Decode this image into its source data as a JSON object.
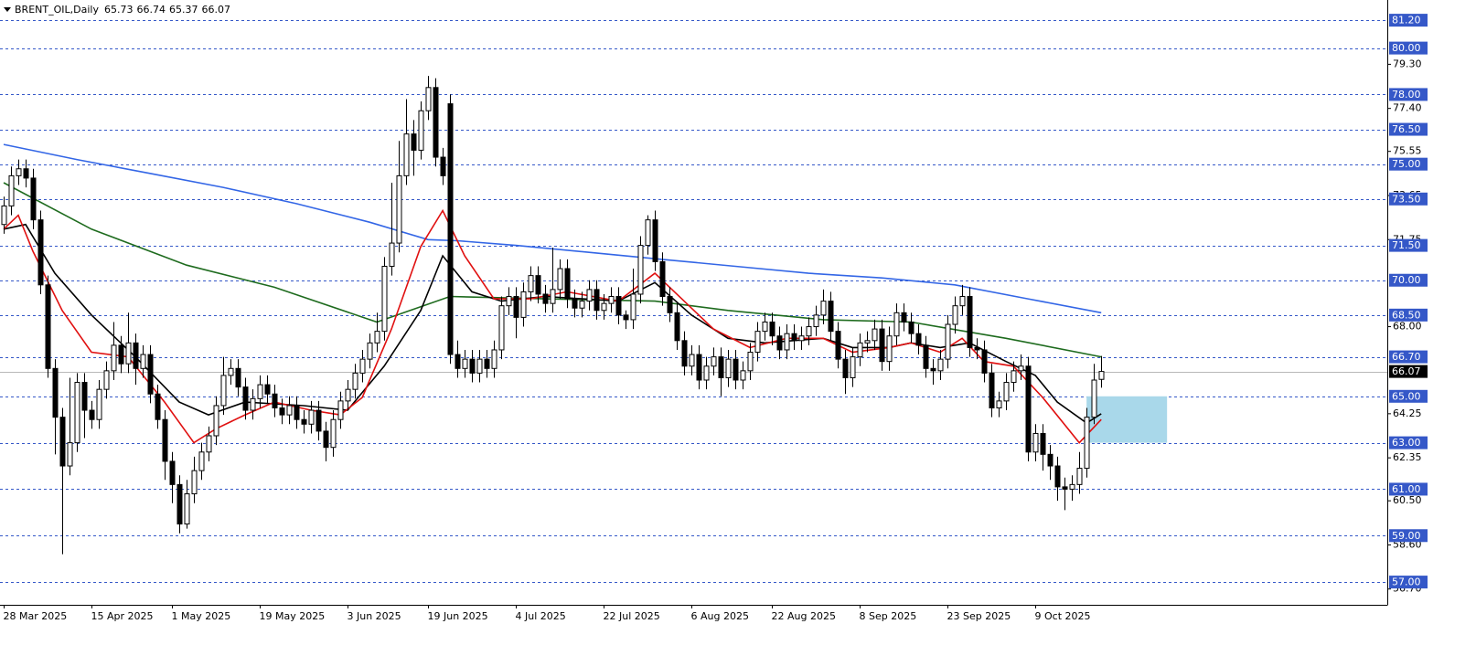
{
  "chart_data": {
    "type": "candlestick",
    "title": "BRENT_OIL,Daily",
    "xlim": [
      -0.5,
      189.1
    ],
    "ylim": [
      56.02,
      82.07
    ],
    "xticks": [
      {
        "value": 0,
        "label": "28 Mar 2025"
      },
      {
        "value": 12,
        "label": "15 Apr 2025"
      },
      {
        "value": 23,
        "label": "1 May 2025"
      },
      {
        "value": 35,
        "label": "19 May 2025"
      },
      {
        "value": 47,
        "label": "3 Jun 2025"
      },
      {
        "value": 58,
        "label": "19 Jun 2025"
      },
      {
        "value": 70,
        "label": "4 Jul 2025"
      },
      {
        "value": 82,
        "label": "22 Jul 2025"
      },
      {
        "value": 94,
        "label": "6 Aug 2025"
      },
      {
        "value": 105,
        "label": "22 Aug 2025"
      },
      {
        "value": 117,
        "label": "8 Sep 2025"
      },
      {
        "value": 129,
        "label": "23 Sep 2025"
      },
      {
        "value": 141,
        "label": "9 Oct 2025"
      }
    ],
    "yticks": [
      {
        "value": 79.3,
        "label": "79.30"
      },
      {
        "value": 77.4,
        "label": "77.40"
      },
      75.55,
      73.65,
      71.75,
      {
        "value": 68,
        "label": "68.00"
      },
      64.25,
      62.35,
      {
        "value": 60.5,
        "label": "60.50"
      },
      {
        "value": 58.6,
        "label": "58.60"
      },
      {
        "value": 56.7,
        "label": "56.70"
      }
    ],
    "levels": [
      {
        "value": 81.2,
        "label": "81.20"
      },
      {
        "value": 80,
        "label": "80.00"
      },
      {
        "value": 78,
        "label": "78.00"
      },
      {
        "value": 76.5,
        "label": "76.50"
      },
      {
        "value": 75,
        "label": "75.00"
      },
      {
        "value": 73.5,
        "label": "73.50"
      },
      {
        "value": 71.5,
        "label": "71.50"
      },
      {
        "value": 70,
        "label": "70.00"
      },
      {
        "value": 68.5,
        "label": "68.50"
      },
      {
        "value": 66.7,
        "label": "66.70"
      },
      {
        "value": 65,
        "label": "65.00"
      },
      {
        "value": 63,
        "label": "63.00"
      },
      {
        "value": 61,
        "label": "61.00"
      },
      {
        "value": 59,
        "label": "59.00"
      },
      {
        "value": 57,
        "label": "57.00"
      }
    ],
    "level_color": "#3558c8",
    "zone": {
      "x": [
        148,
        159
      ],
      "y": [
        63,
        65
      ],
      "color": "#a9d8ea"
    },
    "bull_color": "#ffffff",
    "bear_color": "#000000",
    "open": [
      72.4,
      73.2,
      74.5,
      74.8,
      74.4,
      72.6,
      69.8,
      66.2,
      64.1,
      62.0,
      63.0,
      65.6,
      64.4,
      64.0,
      65.3,
      66.1,
      67.2,
      66.4,
      67.3,
      66.2,
      66.8,
      65.1,
      64.0,
      62.2,
      61.2,
      59.5,
      60.8,
      61.8,
      62.6,
      63.3,
      64.6,
      65.9,
      66.2,
      65.4,
      64.4,
      64.9,
      65.5,
      65.1,
      64.5,
      64.2,
      64.6,
      64.0,
      63.8,
      64.4,
      63.5,
      62.8,
      64.0,
      64.8,
      65.3,
      66.0,
      66.6,
      67.3,
      67.8,
      70.6,
      71.6,
      74.5,
      76.3,
      75.6,
      77.3,
      78.3,
      75.3,
      77.6,
      66.8,
      66.2,
      66.6,
      66.0,
      66.6,
      66.2,
      67.0,
      68.9,
      69.3,
      68.4,
      69.5,
      70.2,
      69.4,
      69.0,
      69.6,
      70.5,
      69.2,
      68.8,
      69.1,
      69.6,
      68.7,
      69.0,
      69.3,
      68.5,
      68.3,
      69.4,
      71.5,
      72.6,
      70.8,
      69.3,
      68.6,
      67.4,
      66.3,
      66.8,
      65.7,
      66.3,
      66.7,
      65.8,
      66.6,
      65.7,
      66.1,
      66.9,
      67.8,
      68.2,
      67.6,
      67.0,
      67.7,
      67.4,
      67.6,
      68.0,
      68.5,
      69.1,
      67.8,
      66.6,
      65.8,
      66.7,
      67.3,
      67.4,
      67.9,
      66.5,
      67.6,
      68.6,
      68.2,
      67.7,
      67.2,
      66.2,
      66.1,
      66.6,
      68.1,
      68.9,
      69.3,
      67.1,
      67.0,
      66.0,
      64.5,
      64.8,
      65.6,
      66.1,
      66.3,
      62.6,
      63.4,
      62.5,
      62.0,
      61.1,
      61.0,
      61.2,
      61.9,
      64.1,
      65.73
    ],
    "high": [
      73.6,
      74.9,
      75.2,
      75.2,
      74.8,
      73.0,
      70.2,
      66.6,
      64.5,
      65.8,
      66.0,
      66.0,
      64.8,
      65.7,
      66.5,
      68.2,
      67.6,
      68.6,
      67.7,
      67.2,
      67.2,
      65.5,
      64.4,
      62.6,
      61.6,
      61.4,
      62.4,
      63.0,
      63.7,
      65.0,
      66.7,
      66.6,
      66.6,
      65.8,
      65.3,
      65.9,
      65.9,
      65.5,
      64.9,
      65.0,
      65.0,
      64.4,
      64.8,
      64.8,
      63.9,
      64.4,
      65.2,
      65.7,
      66.4,
      67.0,
      67.7,
      68.6,
      71.0,
      74.2,
      76.0,
      77.8,
      76.9,
      77.7,
      78.8,
      78.7,
      75.7,
      78.0,
      67.4,
      67.0,
      67.0,
      67.0,
      67.0,
      67.4,
      69.3,
      69.7,
      69.7,
      69.9,
      70.6,
      70.6,
      69.8,
      71.4,
      70.9,
      70.9,
      69.6,
      69.5,
      70.0,
      70.0,
      69.4,
      69.7,
      69.7,
      68.7,
      70.5,
      71.9,
      72.8,
      73.0,
      71.2,
      69.7,
      69.0,
      67.8,
      67.2,
      67.2,
      66.7,
      67.1,
      67.1,
      67.0,
      67.0,
      66.5,
      67.3,
      68.2,
      68.6,
      68.6,
      68.0,
      68.1,
      68.1,
      68.0,
      68.4,
      68.9,
      69.6,
      69.5,
      68.2,
      67.0,
      67.1,
      67.7,
      67.8,
      68.3,
      68.3,
      68.0,
      69.0,
      69.0,
      68.6,
      68.1,
      67.6,
      66.6,
      67.0,
      68.5,
      69.3,
      69.8,
      69.7,
      67.5,
      67.4,
      66.4,
      65.2,
      66.0,
      66.5,
      66.8,
      66.7,
      63.8,
      63.8,
      62.9,
      62.4,
      61.5,
      61.6,
      62.6,
      64.5,
      66.4,
      66.74
    ],
    "low": [
      72.0,
      72.8,
      74.1,
      74.0,
      72.2,
      69.4,
      65.8,
      62.5,
      58.2,
      61.6,
      62.6,
      63.2,
      63.6,
      63.6,
      64.9,
      65.7,
      66.0,
      66.0,
      65.5,
      65.8,
      64.7,
      63.6,
      61.4,
      60.4,
      59.1,
      59.3,
      60.4,
      61.4,
      62.2,
      62.9,
      64.2,
      65.5,
      65.0,
      64.0,
      64.0,
      64.5,
      64.7,
      64.1,
      63.8,
      63.8,
      63.6,
      63.4,
      63.4,
      63.1,
      62.2,
      62.4,
      63.6,
      64.4,
      64.9,
      65.6,
      66.2,
      66.9,
      67.4,
      70.2,
      71.2,
      74.1,
      74.5,
      75.2,
      76.9,
      74.9,
      74.1,
      66.4,
      65.8,
      65.8,
      65.6,
      65.6,
      65.8,
      65.8,
      66.6,
      68.5,
      67.5,
      68.0,
      69.1,
      69.0,
      68.6,
      68.6,
      69.2,
      68.8,
      68.4,
      68.4,
      68.7,
      68.3,
      68.3,
      68.6,
      68.1,
      67.9,
      67.9,
      69.0,
      71.1,
      70.4,
      68.9,
      68.2,
      67.0,
      65.9,
      65.9,
      65.3,
      65.3,
      65.9,
      65.0,
      65.4,
      65.3,
      65.3,
      65.7,
      66.5,
      67.4,
      67.2,
      66.6,
      66.6,
      67.0,
      67.0,
      67.2,
      67.6,
      68.1,
      67.4,
      66.2,
      65.1,
      65.4,
      66.3,
      66.9,
      67.0,
      66.1,
      66.1,
      67.2,
      67.8,
      67.3,
      66.8,
      65.8,
      65.5,
      65.7,
      66.2,
      67.7,
      68.5,
      66.7,
      66.6,
      65.6,
      64.1,
      64.1,
      64.4,
      65.2,
      65.7,
      62.2,
      62.2,
      61.8,
      61.4,
      60.5,
      60.1,
      60.5,
      60.8,
      61.5,
      63.8,
      65.37
    ],
    "close": [
      73.2,
      74.5,
      74.8,
      74.4,
      72.6,
      69.8,
      66.2,
      64.1,
      62.0,
      63.0,
      65.6,
      64.4,
      64.0,
      65.3,
      66.1,
      67.2,
      66.4,
      67.3,
      66.2,
      66.8,
      65.1,
      64.0,
      62.2,
      61.2,
      59.5,
      60.8,
      61.8,
      62.6,
      63.3,
      64.6,
      65.9,
      66.2,
      65.4,
      64.4,
      64.9,
      65.5,
      65.1,
      64.5,
      64.2,
      64.6,
      64.0,
      63.8,
      64.4,
      63.5,
      62.8,
      64.0,
      64.8,
      65.3,
      66.0,
      66.6,
      67.3,
      67.8,
      70.6,
      71.6,
      74.5,
      76.3,
      75.6,
      77.3,
      78.3,
      75.3,
      74.5,
      66.8,
      66.2,
      66.6,
      66.0,
      66.6,
      66.2,
      67.0,
      68.9,
      69.3,
      68.4,
      69.5,
      70.2,
      69.4,
      69.0,
      69.6,
      70.5,
      69.2,
      68.8,
      69.1,
      69.6,
      68.7,
      69.0,
      69.3,
      68.5,
      68.3,
      69.4,
      71.5,
      72.6,
      70.8,
      69.3,
      68.6,
      67.4,
      66.3,
      66.8,
      65.7,
      66.3,
      66.7,
      65.8,
      66.6,
      65.7,
      66.1,
      66.9,
      67.8,
      68.2,
      67.6,
      67.0,
      67.7,
      67.4,
      67.6,
      68.0,
      68.5,
      69.1,
      67.8,
      66.6,
      65.8,
      66.7,
      67.3,
      67.4,
      67.9,
      66.5,
      67.6,
      68.6,
      68.2,
      67.7,
      67.2,
      66.2,
      66.1,
      66.6,
      68.1,
      68.9,
      69.3,
      67.1,
      67.0,
      66.0,
      64.5,
      64.8,
      65.6,
      66.1,
      66.3,
      62.6,
      63.4,
      62.5,
      62.0,
      61.1,
      61.0,
      61.2,
      61.9,
      64.1,
      65.7,
      66.07
    ],
    "series": [
      {
        "color": "#3366e6",
        "x": [
          0,
          10,
          20,
          30,
          40,
          50,
          58,
          62,
          70,
          80,
          90,
          100,
          110,
          120,
          130,
          140,
          150
        ],
        "values": [
          75.85,
          75.2,
          74.6,
          74.0,
          73.3,
          72.5,
          71.75,
          71.7,
          71.5,
          71.2,
          70.9,
          70.6,
          70.3,
          70.1,
          69.8,
          69.2,
          68.6
        ]
      },
      {
        "color": "#1e6b1e",
        "x": [
          0,
          12,
          25,
          37,
          51,
          61,
          74,
          89,
          99,
          112,
          124,
          137,
          150
        ],
        "values": [
          74.2,
          72.2,
          70.65,
          69.7,
          68.2,
          69.3,
          69.2,
          69.1,
          68.7,
          68.3,
          68.2,
          67.5,
          66.7
        ]
      },
      {
        "color": "#000000",
        "x": [
          0,
          3,
          7,
          12,
          18,
          24,
          28,
          33,
          41,
          47,
          52,
          57,
          60,
          64,
          68,
          74,
          84,
          89,
          94,
          99,
          104,
          112,
          116,
          121,
          124,
          128,
          132,
          137,
          141,
          144,
          148,
          150
        ],
        "values": [
          72.2,
          72.4,
          70.3,
          68.5,
          66.7,
          64.75,
          64.2,
          64.75,
          64.6,
          64.4,
          66.3,
          68.7,
          71.05,
          69.5,
          69.1,
          69.3,
          69.1,
          69.9,
          68.5,
          67.5,
          67.3,
          67.5,
          67.1,
          67.1,
          67.3,
          67.1,
          67.3,
          66.5,
          65.9,
          64.75,
          63.85,
          64.25
        ]
      },
      {
        "color": "#e01010",
        "x": [
          0,
          2,
          4,
          8,
          12,
          17,
          22,
          26,
          29,
          33,
          37,
          42,
          46,
          49,
          53,
          57,
          60,
          63,
          67,
          72,
          77,
          84,
          89,
          93,
          97,
          102,
          107,
          112,
          116,
          121,
          124,
          128,
          131,
          134,
          138,
          142,
          147,
          150
        ],
        "values": [
          72.2,
          72.8,
          71.25,
          68.7,
          66.9,
          66.7,
          64.75,
          63.0,
          63.6,
          64.2,
          64.75,
          64.4,
          64.2,
          64.95,
          67.9,
          71.45,
          73.0,
          71.05,
          69.2,
          69.2,
          69.5,
          69.1,
          70.3,
          69.1,
          67.9,
          67.1,
          67.5,
          67.5,
          66.9,
          67.1,
          67.3,
          66.9,
          67.5,
          66.5,
          66.3,
          64.95,
          63.0,
          64.0
        ]
      }
    ]
  }
}
